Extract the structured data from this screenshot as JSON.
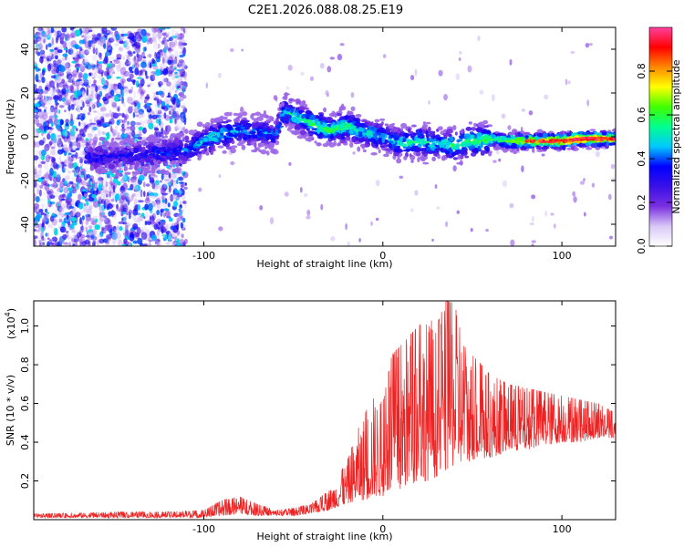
{
  "title": "C2E1.2026.088.08.25.E19",
  "colors": {
    "snr_line": "#ee2222",
    "spectrogram_purple": "#6a1ee0",
    "spectrogram_light": "#c9a6f5"
  },
  "chart_data": [
    {
      "type": "heatmap",
      "name": "spectrogram",
      "xlabel": "Height of straight line (km)",
      "ylabel": "Frequency (Hz)",
      "xlim": [
        -195,
        130
      ],
      "ylim": [
        -50,
        50
      ],
      "xticks": [
        -100,
        0,
        100
      ],
      "xtick_labels": [
        "-100",
        "0",
        "100"
      ],
      "yticks": [
        -40,
        -20,
        0,
        20,
        40
      ],
      "ytick_labels": [
        "-40",
        "-20",
        "0",
        "20",
        "40"
      ],
      "colorbar": {
        "label": "Normalized spectral amplitude",
        "range": [
          0.0,
          1.0
        ],
        "ticks": [
          0.0,
          0.2,
          0.4,
          0.6,
          0.8
        ],
        "tick_labels": [
          "0.0",
          "0.2",
          "0.4",
          "0.6",
          "0.8"
        ],
        "colormap": [
          "#ffffff",
          "#d9c8f7",
          "#7a2fe0",
          "#3a10e8",
          "#0000ff",
          "#00c8ff",
          "#00ff90",
          "#40ff00",
          "#ffff00",
          "#ff8800",
          "#ff0000",
          "#ff40a0"
        ]
      },
      "signal_trace": {
        "description_units": "km, Hz, amplitude",
        "x": [
          -165,
          -150,
          -130,
          -110,
          -95,
          -80,
          -60,
          -55,
          -40,
          -30,
          -20,
          -10,
          0,
          10,
          20,
          30,
          40,
          50,
          60,
          70,
          80,
          90,
          100,
          110,
          120,
          130
        ],
        "y": [
          -10,
          -9,
          -8,
          -6,
          0,
          3,
          1,
          12,
          6,
          3,
          5,
          2,
          0,
          -3,
          -2,
          -3,
          -4,
          -2,
          -1,
          -2,
          -2,
          -2,
          -2,
          -1,
          -1,
          -1
        ],
        "amplitude": [
          0.35,
          0.3,
          0.35,
          0.4,
          0.5,
          0.45,
          0.4,
          0.5,
          0.55,
          0.6,
          0.55,
          0.5,
          0.45,
          0.5,
          0.55,
          0.5,
          0.55,
          0.6,
          0.6,
          0.7,
          0.75,
          0.85,
          0.9,
          0.9,
          0.85,
          0.8
        ]
      },
      "noise_region_x": [
        -195,
        -110
      ]
    },
    {
      "type": "line",
      "name": "snr",
      "xlabel": "Height of straight line (km)",
      "ylabel": "SNR (10 * v/v)",
      "y_scale_label": "(x10",
      "y_scale_exp": "4",
      "y_scale_close": ")",
      "xlim": [
        -195,
        130
      ],
      "ylim": [
        0,
        1.13
      ],
      "xticks": [
        -100,
        0,
        100
      ],
      "xtick_labels": [
        "-100",
        "0",
        "100"
      ],
      "yticks": [
        0.2,
        0.4,
        0.6,
        0.8,
        1.0
      ],
      "ytick_labels": [
        "0.2",
        "0.4",
        "0.6",
        "0.8",
        "1.0"
      ],
      "series": [
        {
          "name": "SNR",
          "envelope_x": [
            -195,
            -150,
            -120,
            -100,
            -90,
            -80,
            -70,
            -60,
            -50,
            -40,
            -30,
            -20,
            -15,
            -10,
            -5,
            0,
            5,
            10,
            15,
            20,
            25,
            30,
            35,
            40,
            45,
            50,
            60,
            70,
            80,
            90,
            100,
            110,
            120,
            130
          ],
          "envelope_low": [
            0.01,
            0.01,
            0.01,
            0.01,
            0.02,
            0.03,
            0.02,
            0.02,
            0.02,
            0.03,
            0.05,
            0.08,
            0.1,
            0.1,
            0.12,
            0.12,
            0.15,
            0.15,
            0.18,
            0.2,
            0.2,
            0.22,
            0.25,
            0.28,
            0.3,
            0.3,
            0.32,
            0.35,
            0.36,
            0.38,
            0.4,
            0.4,
            0.42,
            0.42
          ],
          "envelope_high": [
            0.03,
            0.04,
            0.04,
            0.05,
            0.1,
            0.12,
            0.08,
            0.05,
            0.06,
            0.08,
            0.15,
            0.3,
            0.45,
            0.55,
            0.65,
            0.6,
            0.85,
            0.9,
            0.95,
            1.0,
            1.05,
            1.0,
            1.13,
            1.12,
            0.9,
            0.85,
            0.75,
            0.7,
            0.68,
            0.66,
            0.64,
            0.62,
            0.6,
            0.55
          ]
        }
      ]
    }
  ]
}
